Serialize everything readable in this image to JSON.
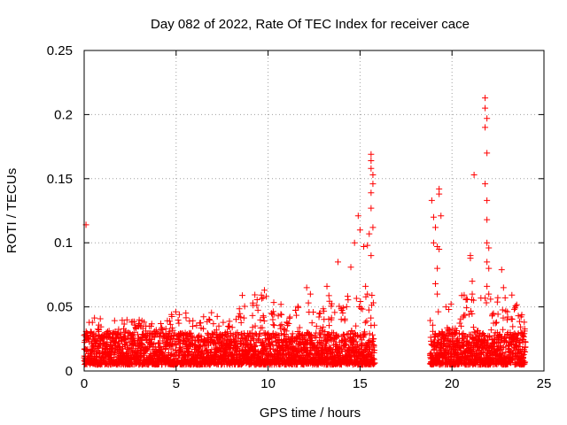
{
  "chart_data": {
    "type": "scatter",
    "title": "Day 082 of 2022, Rate Of TEC Index for receiver cace",
    "xlabel": "GPS time / hours",
    "ylabel": "ROTI / TECUs",
    "xlim": [
      0,
      25
    ],
    "ylim": [
      0,
      0.25
    ],
    "x_ticks": [
      0,
      5,
      10,
      15,
      20,
      25
    ],
    "x_tick_labels": [
      "0",
      "5",
      "10",
      "15",
      "20",
      "25"
    ],
    "y_ticks": [
      0,
      0.05,
      0.1,
      0.15,
      0.2,
      0.25
    ],
    "y_tick_labels": [
      "0",
      "0.05",
      "0.1",
      "0.15",
      "0.2",
      "0.25"
    ],
    "grid": true,
    "marker": "+",
    "color": "#ff0000",
    "data_gap": [
      15.8,
      18.8
    ],
    "baseline_band": [
      0.005,
      0.03
    ],
    "envelope": [
      [
        0,
        0.04
      ],
      [
        1,
        0.045
      ],
      [
        2,
        0.043
      ],
      [
        3,
        0.04
      ],
      [
        4,
        0.036
      ],
      [
        5,
        0.048
      ],
      [
        6,
        0.045
      ],
      [
        7,
        0.046
      ],
      [
        8,
        0.04
      ],
      [
        9,
        0.06
      ],
      [
        10,
        0.06
      ],
      [
        11,
        0.04
      ],
      [
        12,
        0.058
      ],
      [
        13,
        0.05
      ],
      [
        14,
        0.085
      ],
      [
        15,
        0.12
      ],
      [
        15.8,
        0.16
      ],
      [
        18.9,
        0.13
      ],
      [
        19.5,
        0.14
      ],
      [
        20.2,
        0.04
      ],
      [
        21,
        0.09
      ],
      [
        22,
        0.21
      ],
      [
        23,
        0.08
      ],
      [
        24,
        0.035
      ]
    ],
    "series": [
      {
        "name": "ROTI",
        "points": [
          [
            0.1,
            0.114
          ],
          [
            8.6,
            0.059
          ],
          [
            9.8,
            0.063
          ],
          [
            10.7,
            0.052
          ],
          [
            12.1,
            0.065
          ],
          [
            12.3,
            0.06
          ],
          [
            13.2,
            0.066
          ],
          [
            13.8,
            0.085
          ],
          [
            14.5,
            0.081
          ],
          [
            14.7,
            0.1
          ],
          [
            14.9,
            0.121
          ],
          [
            15.0,
            0.11
          ],
          [
            15.2,
            0.097
          ],
          [
            15.4,
            0.098
          ],
          [
            15.6,
            0.169
          ],
          [
            15.6,
            0.164
          ],
          [
            15.6,
            0.158
          ],
          [
            15.7,
            0.153
          ],
          [
            15.7,
            0.146
          ],
          [
            15.6,
            0.139
          ],
          [
            15.6,
            0.127
          ],
          [
            15.7,
            0.112
          ],
          [
            15.5,
            0.107
          ],
          [
            15.6,
            0.09
          ],
          [
            15.3,
            0.066
          ],
          [
            15.4,
            0.06
          ],
          [
            18.9,
            0.133
          ],
          [
            19.0,
            0.12
          ],
          [
            19.1,
            0.112
          ],
          [
            19.0,
            0.1
          ],
          [
            19.2,
            0.097
          ],
          [
            19.3,
            0.142
          ],
          [
            19.3,
            0.138
          ],
          [
            19.4,
            0.121
          ],
          [
            19.3,
            0.095
          ],
          [
            19.2,
            0.08
          ],
          [
            19.1,
            0.068
          ],
          [
            19.2,
            0.06
          ],
          [
            20.1,
            0.03
          ],
          [
            20.5,
            0.035
          ],
          [
            21.0,
            0.09
          ],
          [
            21.0,
            0.088
          ],
          [
            21.1,
            0.07
          ],
          [
            21.2,
            0.153
          ],
          [
            21.1,
            0.06
          ],
          [
            21.8,
            0.213
          ],
          [
            21.8,
            0.205
          ],
          [
            21.9,
            0.197
          ],
          [
            21.8,
            0.19
          ],
          [
            21.9,
            0.17
          ],
          [
            21.8,
            0.146
          ],
          [
            21.9,
            0.133
          ],
          [
            21.9,
            0.118
          ],
          [
            21.9,
            0.1
          ],
          [
            22.0,
            0.096
          ],
          [
            21.9,
            0.085
          ],
          [
            22.0,
            0.08
          ],
          [
            21.9,
            0.066
          ],
          [
            22.0,
            0.06
          ],
          [
            22.1,
            0.056
          ],
          [
            22.7,
            0.079
          ],
          [
            22.8,
            0.065
          ],
          [
            23.0,
            0.04
          ]
        ]
      }
    ]
  }
}
